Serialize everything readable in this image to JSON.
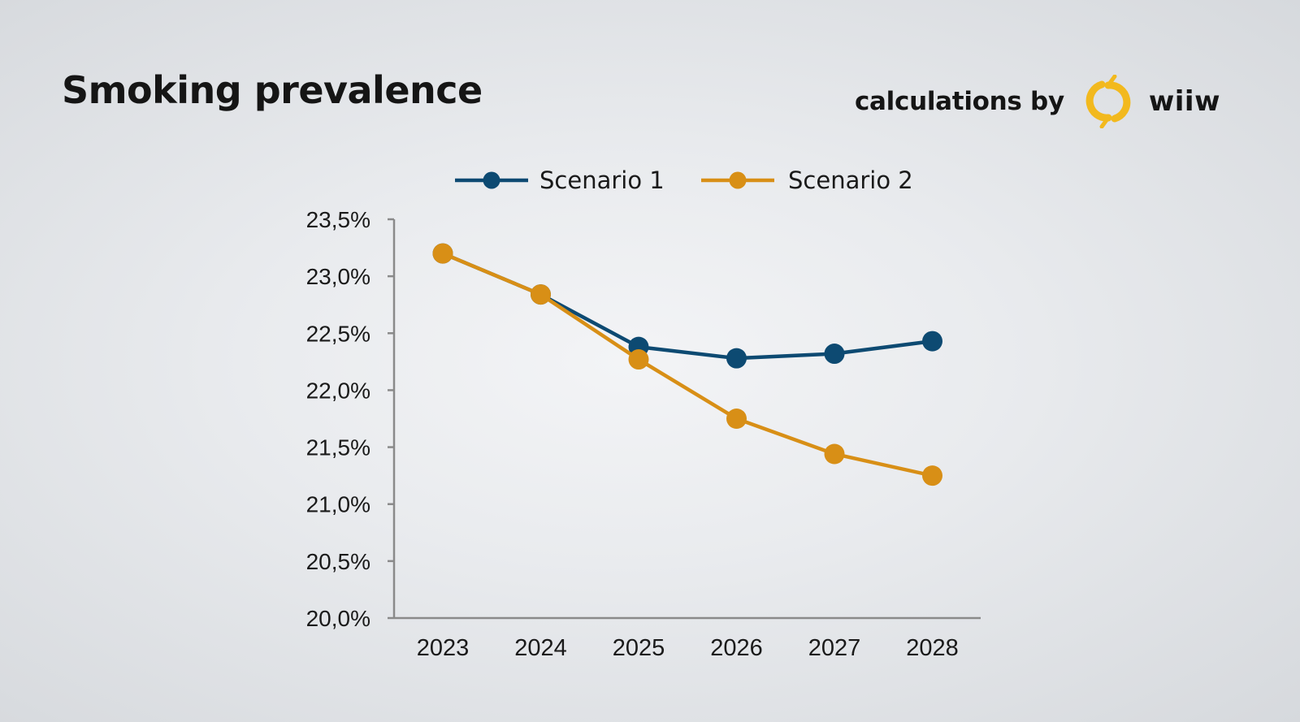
{
  "header": {
    "title": "Smoking prevalence",
    "credit_label": "calculations by",
    "credit_brand": "wiiw"
  },
  "colors": {
    "scenario_1": "#0d4a72",
    "scenario_2": "#d88f16",
    "axis": "#8a8a8a",
    "logo": "#f2b91e"
  },
  "chart_data": {
    "type": "line",
    "title": "Smoking prevalence",
    "xlabel": "",
    "ylabel": "",
    "categories": [
      "2023",
      "2024",
      "2025",
      "2026",
      "2027",
      "2028"
    ],
    "ylim": [
      20.0,
      23.5
    ],
    "yticks": [
      20.0,
      20.5,
      21.0,
      21.5,
      22.0,
      22.5,
      23.0,
      23.5
    ],
    "ytick_labels": [
      "20,0%",
      "20,5%",
      "21,0%",
      "21,5%",
      "22,0%",
      "22,5%",
      "23,0%",
      "23,5%"
    ],
    "legend_position": "top-center",
    "grid": false,
    "series": [
      {
        "name": "Scenario 1",
        "color": "#0d4a72",
        "values": [
          23.2,
          22.84,
          22.38,
          22.28,
          22.32,
          22.43
        ]
      },
      {
        "name": "Scenario 2",
        "color": "#d88f16",
        "values": [
          23.2,
          22.84,
          22.27,
          21.75,
          21.44,
          21.25
        ]
      }
    ]
  }
}
